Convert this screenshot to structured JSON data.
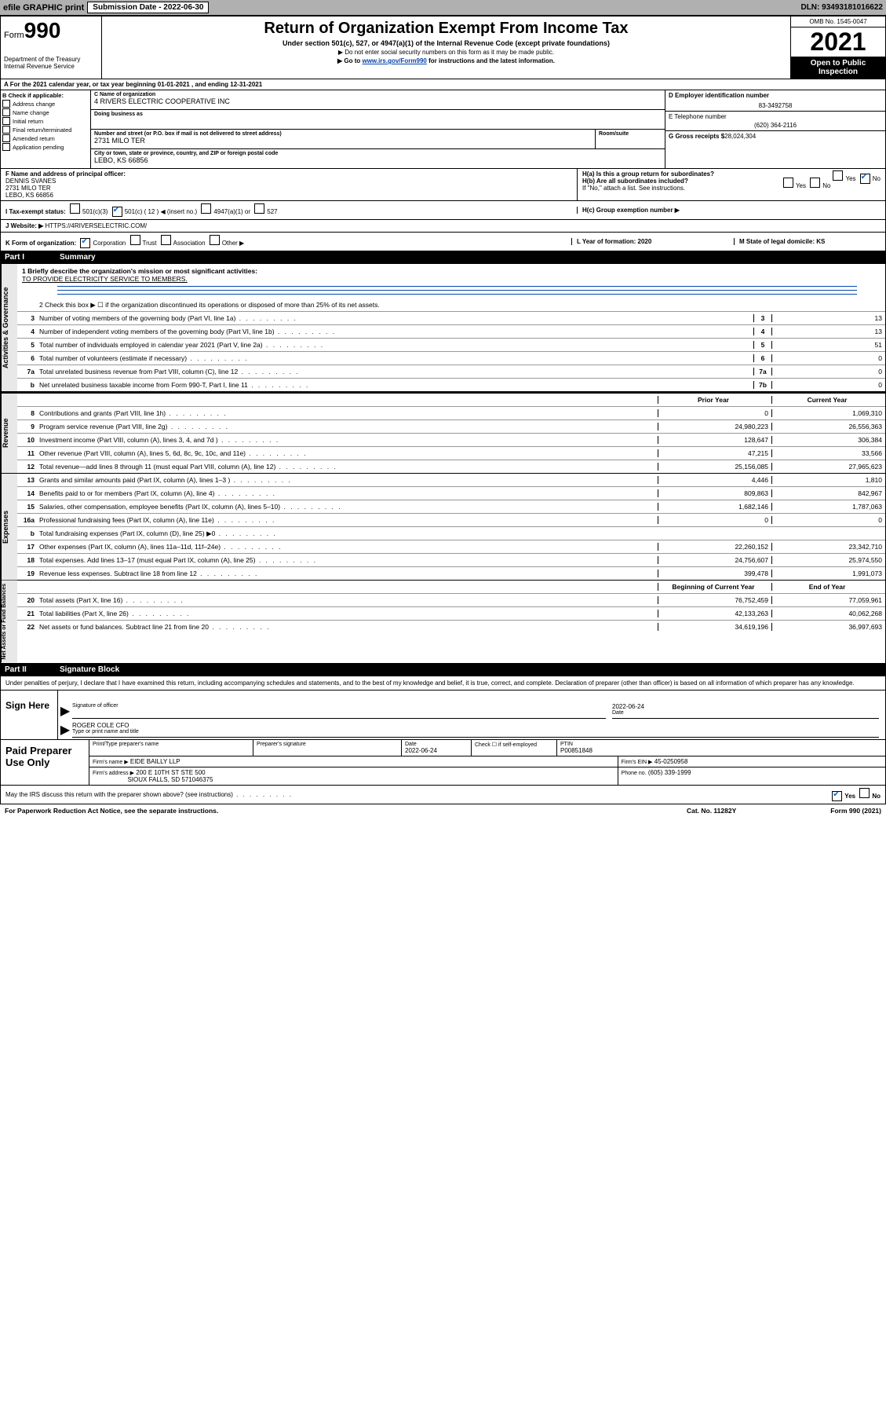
{
  "top": {
    "efile": "efile GRAPHIC print",
    "submission_label": "Submission Date - 2022-06-30",
    "dln": "DLN: 93493181016622"
  },
  "header": {
    "form_prefix": "Form",
    "form_num": "990",
    "dept": "Department of the Treasury",
    "irs": "Internal Revenue Service",
    "title": "Return of Organization Exempt From Income Tax",
    "sub": "Under section 501(c), 527, or 4947(a)(1) of the Internal Revenue Code (except private foundations)",
    "note1": "▶ Do not enter social security numbers on this form as it may be made public.",
    "note2_pre": "▶ Go to ",
    "note2_link": "www.irs.gov/Form990",
    "note2_post": " for instructions and the latest information.",
    "omb": "OMB No. 1545-0047",
    "year": "2021",
    "inspect": "Open to Public Inspection"
  },
  "period": "For the 2021 calendar year, or tax year beginning 01-01-2021   , and ending 12-31-2021",
  "box_b": {
    "title": "B Check if applicable:",
    "items": [
      "Address change",
      "Name change",
      "Initial return",
      "Final return/terminated",
      "Amended return",
      "Application pending"
    ]
  },
  "box_c": {
    "name_label": "C Name of organization",
    "name": "4 RIVERS ELECTRIC COOPERATIVE INC",
    "dba_label": "Doing business as",
    "street_label": "Number and street (or P.O. box if mail is not delivered to street address)",
    "room_label": "Room/suite",
    "street": "2731 MILO TER",
    "city_label": "City or town, state or province, country, and ZIP or foreign postal code",
    "city": "LEBO, KS  66856"
  },
  "box_d": {
    "ein_label": "D Employer identification number",
    "ein": "83-3492758",
    "phone_label": "E Telephone number",
    "phone": "(620) 364-2116",
    "gross_label": "G Gross receipts $",
    "gross": "28,024,304"
  },
  "box_f": {
    "label": "F Name and address of principal officer:",
    "name": "DENNIS SVANES",
    "street": "2731 MILO TER",
    "city": "LEBO, KS  66856"
  },
  "box_h": {
    "ha": "H(a)  Is this a group return for subordinates?",
    "hb": "H(b)  Are all subordinates included?",
    "hb_note": "If \"No,\" attach a list. See instructions.",
    "hc": "H(c)  Group exemption number ▶",
    "yes": "Yes",
    "no": "No"
  },
  "tax_status": {
    "label": "I   Tax-exempt status:",
    "opt1": "501(c)(3)",
    "opt2_pre": "501(c) (",
    "opt2_insert": "12",
    "opt2_post": ") ◀ (insert no.)",
    "opt3": "4947(a)(1) or",
    "opt4": "527"
  },
  "website": {
    "label": "J   Website: ▶",
    "url": "HTTPS://4RIVERSELECTRIC.COM/"
  },
  "form_org": {
    "k": "K Form of organization:",
    "corp": "Corporation",
    "trust": "Trust",
    "assoc": "Association",
    "other": "Other ▶",
    "l": "L Year of formation: 2020",
    "m": "M State of legal domicile: KS"
  },
  "part1_title": "Summary",
  "mission": {
    "line1": "1   Briefly describe the organization's mission or most significant activities:",
    "text": "TO PROVIDE ELECTRICITY SERVICE TO MEMBERS."
  },
  "line2": "2   Check this box ▶ ☐  if the organization discontinued its operations or disposed of more than 25% of its net assets.",
  "gov_rows": [
    {
      "n": "3",
      "d": "Number of voting members of the governing body (Part VI, line 1a)",
      "c": "3",
      "v": "13"
    },
    {
      "n": "4",
      "d": "Number of independent voting members of the governing body (Part VI, line 1b)",
      "c": "4",
      "v": "13"
    },
    {
      "n": "5",
      "d": "Total number of individuals employed in calendar year 2021 (Part V, line 2a)",
      "c": "5",
      "v": "51"
    },
    {
      "n": "6",
      "d": "Total number of volunteers (estimate if necessary)",
      "c": "6",
      "v": "0"
    },
    {
      "n": "7a",
      "d": "Total unrelated business revenue from Part VIII, column (C), line 12",
      "c": "7a",
      "v": "0"
    },
    {
      "n": "b",
      "d": "Net unrelated business taxable income from Form 990-T, Part I, line 11",
      "c": "7b",
      "v": "0"
    }
  ],
  "year_headers": {
    "prior": "Prior Year",
    "curr": "Current Year"
  },
  "rev_rows": [
    {
      "n": "8",
      "d": "Contributions and grants (Part VIII, line 1h)",
      "p": "0",
      "c": "1,069,310"
    },
    {
      "n": "9",
      "d": "Program service revenue (Part VIII, line 2g)",
      "p": "24,980,223",
      "c": "26,556,363"
    },
    {
      "n": "10",
      "d": "Investment income (Part VIII, column (A), lines 3, 4, and 7d )",
      "p": "128,647",
      "c": "306,384"
    },
    {
      "n": "11",
      "d": "Other revenue (Part VIII, column (A), lines 5, 6d, 8c, 9c, 10c, and 11e)",
      "p": "47,215",
      "c": "33,566"
    },
    {
      "n": "12",
      "d": "Total revenue—add lines 8 through 11 (must equal Part VIII, column (A), line 12)",
      "p": "25,156,085",
      "c": "27,965,623"
    }
  ],
  "exp_rows": [
    {
      "n": "13",
      "d": "Grants and similar amounts paid (Part IX, column (A), lines 1–3 )",
      "p": "4,446",
      "c": "1,810"
    },
    {
      "n": "14",
      "d": "Benefits paid to or for members (Part IX, column (A), line 4)",
      "p": "809,863",
      "c": "842,967"
    },
    {
      "n": "15",
      "d": "Salaries, other compensation, employee benefits (Part IX, column (A), lines 5–10)",
      "p": "1,682,146",
      "c": "1,787,063"
    },
    {
      "n": "16a",
      "d": "Professional fundraising fees (Part IX, column (A), line 11e)",
      "p": "0",
      "c": "0"
    },
    {
      "n": "b",
      "d": "Total fundraising expenses (Part IX, column (D), line 25) ▶0",
      "p": "",
      "c": "",
      "grey": true
    },
    {
      "n": "17",
      "d": "Other expenses (Part IX, column (A), lines 11a–11d, 11f–24e)",
      "p": "22,260,152",
      "c": "23,342,710"
    },
    {
      "n": "18",
      "d": "Total expenses. Add lines 13–17 (must equal Part IX, column (A), line 25)",
      "p": "24,756,607",
      "c": "25,974,550"
    },
    {
      "n": "19",
      "d": "Revenue less expenses. Subtract line 18 from line 12",
      "p": "399,478",
      "c": "1,991,073"
    }
  ],
  "net_headers": {
    "prior": "Beginning of Current Year",
    "curr": "End of Year"
  },
  "net_rows": [
    {
      "n": "20",
      "d": "Total assets (Part X, line 16)",
      "p": "76,752,459",
      "c": "77,059,961"
    },
    {
      "n": "21",
      "d": "Total liabilities (Part X, line 26)",
      "p": "42,133,263",
      "c": "40,062,268"
    },
    {
      "n": "22",
      "d": "Net assets or fund balances. Subtract line 21 from line 20",
      "p": "34,619,196",
      "c": "36,997,693"
    }
  ],
  "side_labels": {
    "gov": "Activities & Governance",
    "rev": "Revenue",
    "exp": "Expenses",
    "net": "Net Assets or Fund Balances"
  },
  "part2_title": "Signature Block",
  "sig_text": "Under penalties of perjury, I declare that I have examined this return, including accompanying schedules and statements, and to the best of my knowledge and belief, it is true, correct, and complete. Declaration of preparer (other than officer) is based on all information of which preparer has any knowledge.",
  "sign_here": "Sign Here",
  "sig": {
    "officer_label": "Signature of officer",
    "date_label": "Date",
    "date": "2022-06-24",
    "name": "ROGER COLE CFO",
    "name_label": "Type or print name and title"
  },
  "paid": {
    "title": "Paid Preparer Use Only",
    "pt_label": "Print/Type preparer's name",
    "ps_label": "Preparer's signature",
    "date_label": "Date",
    "date": "2022-06-24",
    "check_label": "Check ☐ if self-employed",
    "ptin_label": "PTIN",
    "ptin": "P00851848",
    "firm_name_label": "Firm's name    ▶",
    "firm_name": "EIDE BAILLY LLP",
    "firm_ein_label": "Firm's EIN ▶",
    "firm_ein": "45-0250958",
    "firm_addr_label": "Firm's address ▶",
    "firm_addr": "200 E 10TH ST STE 500",
    "firm_city": "SIOUX FALLS, SD  571046375",
    "phone_label": "Phone no.",
    "phone": "(605) 339-1999"
  },
  "discuss": "May the IRS discuss this return with the preparer shown above? (see instructions)",
  "paperwork": "For Paperwork Reduction Act Notice, see the separate instructions.",
  "cat": "Cat. No. 11282Y",
  "form_footer": "Form 990 (2021)"
}
